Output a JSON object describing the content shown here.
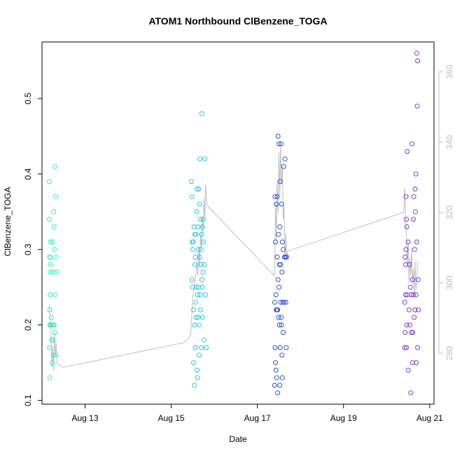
{
  "chart_data": {
    "type": "scatter",
    "title": "ATOM1 Northbound ClBenzene_TOGA",
    "xlabel": "Date",
    "ylabel": "ClBenzene_TOGA",
    "x_unit": "day of August 2016",
    "xlim": [
      12.0,
      21.1
    ],
    "ylim": [
      0.095,
      0.575
    ],
    "y2lim": [
      265.5,
      368.5
    ],
    "x_ticks": [
      {
        "value": 13,
        "label": "Aug 13"
      },
      {
        "value": 15,
        "label": "Aug 15"
      },
      {
        "value": 17,
        "label": "Aug 17"
      },
      {
        "value": 19,
        "label": "Aug 19"
      },
      {
        "value": 21,
        "label": "Aug 21"
      }
    ],
    "y_ticks": [
      0.1,
      0.2,
      0.3,
      0.4,
      0.5
    ],
    "y2_ticks": [
      280,
      300,
      320,
      340,
      360
    ],
    "grid": false,
    "legend": "none",
    "colors": {
      "flight1": "#2ef0b0",
      "flight2": "#28c4e6",
      "flight3": "#2850dc",
      "flight4": "#7a3ce0",
      "secondary_line": "#c0c0c0",
      "secondary_axis": "#bdbdbd"
    },
    "series": [
      {
        "color": "#2ef0b0",
        "x": [
          12.17,
          12.17,
          12.17,
          12.18,
          12.18,
          12.18,
          12.18,
          12.19,
          12.19,
          12.19,
          12.2,
          12.2,
          12.2,
          12.22,
          12.22,
          12.23,
          12.24,
          12.24,
          12.25,
          12.25,
          12.26,
          12.26,
          12.27,
          12.28,
          12.28,
          12.29,
          12.3,
          12.3,
          12.31,
          12.32,
          12.32,
          12.33,
          12.34
        ],
        "y": [
          0.39,
          0.34,
          0.17,
          0.13,
          0.29,
          0.22,
          0.2,
          0.27,
          0.24,
          0.29,
          0.2,
          0.31,
          0.28,
          0.21,
          0.2,
          0.18,
          0.31,
          0.15,
          0.18,
          0.27,
          0.2,
          0.16,
          0.35,
          0.33,
          0.2,
          0.3,
          0.41,
          0.19,
          0.24,
          0.16,
          0.37,
          0.29,
          0.27
        ]
      },
      {
        "color": "#28c4e6",
        "x": [
          15.47,
          15.48,
          15.48,
          15.49,
          15.5,
          15.5,
          15.51,
          15.52,
          15.52,
          15.53,
          15.54,
          15.54,
          15.55,
          15.55,
          15.56,
          15.56,
          15.57,
          15.57,
          15.58,
          15.58,
          15.59,
          15.6,
          15.6,
          15.61,
          15.61,
          15.62,
          15.62,
          15.63,
          15.63,
          15.64,
          15.65,
          15.65,
          15.66,
          15.66,
          15.67,
          15.67,
          15.68,
          15.68,
          15.69,
          15.69,
          15.7,
          15.7,
          15.71,
          15.71,
          15.72,
          15.73,
          15.73,
          15.74,
          15.74,
          15.75,
          15.76,
          15.77,
          15.78,
          15.8,
          15.81
        ],
        "y": [
          0.39,
          0.37,
          0.26,
          0.31,
          0.3,
          0.25,
          0.31,
          0.22,
          0.15,
          0.33,
          0.12,
          0.2,
          0.28,
          0.32,
          0.17,
          0.29,
          0.32,
          0.23,
          0.21,
          0.25,
          0.35,
          0.14,
          0.38,
          0.13,
          0.24,
          0.33,
          0.21,
          0.25,
          0.3,
          0.38,
          0.2,
          0.16,
          0.36,
          0.29,
          0.42,
          0.24,
          0.22,
          0.34,
          0.28,
          0.3,
          0.32,
          0.17,
          0.26,
          0.48,
          0.25,
          0.33,
          0.21,
          0.34,
          0.27,
          0.31,
          0.18,
          0.28,
          0.42,
          0.24,
          0.17
        ]
      },
      {
        "color": "#2850dc",
        "x": [
          17.4,
          17.4,
          17.41,
          17.41,
          17.42,
          17.42,
          17.43,
          17.43,
          17.44,
          17.44,
          17.45,
          17.45,
          17.46,
          17.46,
          17.47,
          17.47,
          17.48,
          17.48,
          17.49,
          17.49,
          17.5,
          17.5,
          17.51,
          17.51,
          17.52,
          17.52,
          17.53,
          17.53,
          17.54,
          17.54,
          17.55,
          17.55,
          17.56,
          17.56,
          17.57,
          17.57,
          17.58,
          17.58,
          17.59,
          17.6,
          17.6,
          17.61,
          17.62,
          17.63,
          17.64,
          17.65,
          17.66,
          17.67,
          17.68
        ],
        "y": [
          0.23,
          0.12,
          0.37,
          0.17,
          0.15,
          0.31,
          0.24,
          0.14,
          0.22,
          0.36,
          0.22,
          0.13,
          0.29,
          0.37,
          0.22,
          0.11,
          0.26,
          0.45,
          0.32,
          0.21,
          0.25,
          0.44,
          0.28,
          0.2,
          0.33,
          0.12,
          0.39,
          0.17,
          0.28,
          0.23,
          0.21,
          0.44,
          0.2,
          0.36,
          0.27,
          0.16,
          0.31,
          0.13,
          0.23,
          0.3,
          0.19,
          0.41,
          0.23,
          0.29,
          0.42,
          0.29,
          0.23,
          0.17,
          0.29
        ]
      },
      {
        "color": "#7a3ce0",
        "x": [
          20.42,
          20.42,
          20.43,
          20.43,
          20.44,
          20.44,
          20.45,
          20.45,
          20.46,
          20.46,
          20.47,
          20.47,
          20.48,
          20.48,
          20.5,
          20.5,
          20.52,
          20.53,
          20.54,
          20.55,
          20.56,
          20.57,
          20.58,
          20.59,
          20.6,
          20.6,
          20.61,
          20.62,
          20.62,
          20.63,
          20.64,
          20.65,
          20.66,
          20.66,
          20.67,
          20.68,
          20.68,
          20.69,
          20.7,
          20.7,
          20.71,
          20.72,
          20.72,
          20.73,
          20.74
        ],
        "y": [
          0.23,
          0.17,
          0.29,
          0.19,
          0.28,
          0.24,
          0.37,
          0.3,
          0.34,
          0.17,
          0.33,
          0.2,
          0.43,
          0.24,
          0.14,
          0.31,
          0.22,
          0.28,
          0.2,
          0.25,
          0.11,
          0.24,
          0.19,
          0.44,
          0.26,
          0.15,
          0.19,
          0.34,
          0.24,
          0.37,
          0.21,
          0.3,
          0.38,
          0.22,
          0.35,
          0.24,
          0.4,
          0.15,
          0.31,
          0.56,
          0.49,
          0.17,
          0.55,
          0.26,
          0.22
        ]
      }
    ],
    "secondary_series": {
      "x": [
        12.17,
        12.19,
        12.21,
        12.23,
        12.25,
        12.27,
        12.29,
        12.31,
        12.33,
        12.35,
        12.5,
        15.3,
        15.45,
        15.5,
        15.55,
        15.6,
        15.62,
        15.64,
        15.66,
        15.68,
        15.7,
        15.72,
        15.74,
        15.76,
        15.78,
        15.8,
        15.83,
        17.4,
        17.42,
        17.44,
        17.46,
        17.48,
        17.5,
        17.52,
        17.54,
        17.56,
        17.58,
        17.6,
        17.62,
        17.64,
        17.66,
        17.68,
        17.7,
        20.4,
        20.42,
        20.44,
        20.46,
        20.48,
        20.5,
        20.52,
        20.54,
        20.56,
        20.58,
        20.6,
        20.62,
        20.64,
        20.66,
        20.68,
        20.7,
        20.72
      ],
      "y": [
        294,
        290,
        286,
        276,
        282,
        275,
        286,
        279,
        283,
        277,
        276,
        283,
        285,
        296,
        300,
        306,
        302,
        310,
        305,
        314,
        310,
        319,
        314,
        324,
        318,
        328,
        322,
        302,
        323,
        312,
        329,
        320,
        337,
        325,
        339,
        328,
        333,
        318,
        322,
        306,
        314,
        307,
        309,
        320,
        327,
        318,
        314,
        305,
        312,
        300,
        307,
        302,
        310,
        300,
        304,
        296,
        306,
        298,
        301,
        306
      ]
    }
  }
}
